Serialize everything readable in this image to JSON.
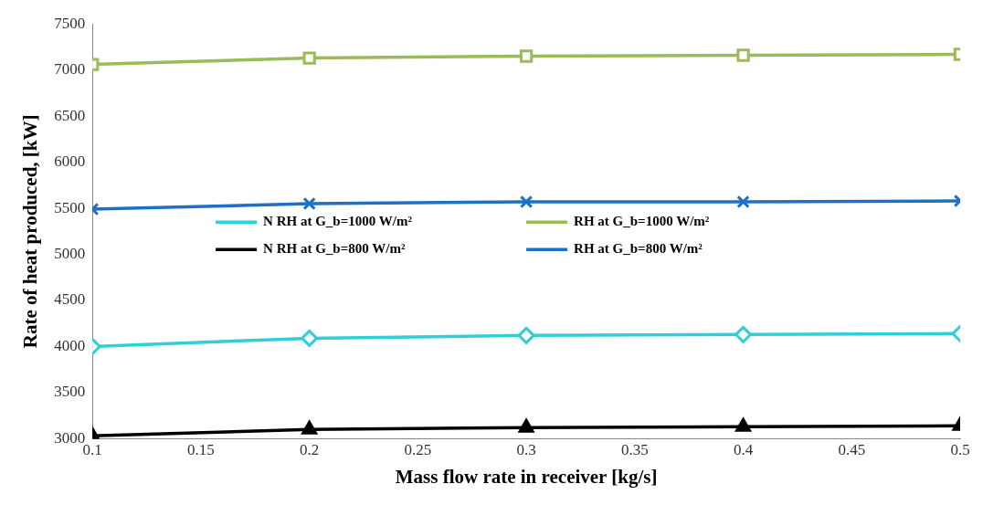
{
  "chart_data": {
    "type": "line",
    "xlabel": "Mass flow rate in receiver [kg/s]",
    "ylabel": "Rate of heat produced, [kW]",
    "x": [
      0.1,
      0.2,
      0.3,
      0.4,
      0.5
    ],
    "xlim": [
      0.1,
      0.5
    ],
    "xticks": [
      0.1,
      0.15,
      0.2,
      0.25,
      0.3,
      0.35,
      0.4,
      0.45,
      0.5
    ],
    "ylim": [
      3000,
      7500
    ],
    "yticks": [
      3000,
      3500,
      4000,
      4500,
      5000,
      5500,
      6000,
      6500,
      7000,
      7500
    ],
    "grid": false,
    "legend": "center",
    "line_style": "solid",
    "series": [
      {
        "name": "N RH at G_b=1000 W/m²",
        "color": "#2ecfd6",
        "marker": "diamond",
        "values": [
          4000,
          4090,
          4120,
          4130,
          4140
        ]
      },
      {
        "name": "RH at G_b=1000 W/m²",
        "color": "#9bbb59",
        "marker": "square",
        "values": [
          7060,
          7130,
          7150,
          7160,
          7170
        ]
      },
      {
        "name": "N RH at G_b=800 W/m²",
        "color": "#000000",
        "marker": "triangle",
        "values": [
          3030,
          3100,
          3120,
          3130,
          3140
        ]
      },
      {
        "name": "RH at G_b=800 W/m²",
        "color": "#1f6fc5",
        "marker": "cross",
        "values": [
          5490,
          5550,
          5570,
          5570,
          5580
        ]
      }
    ]
  }
}
